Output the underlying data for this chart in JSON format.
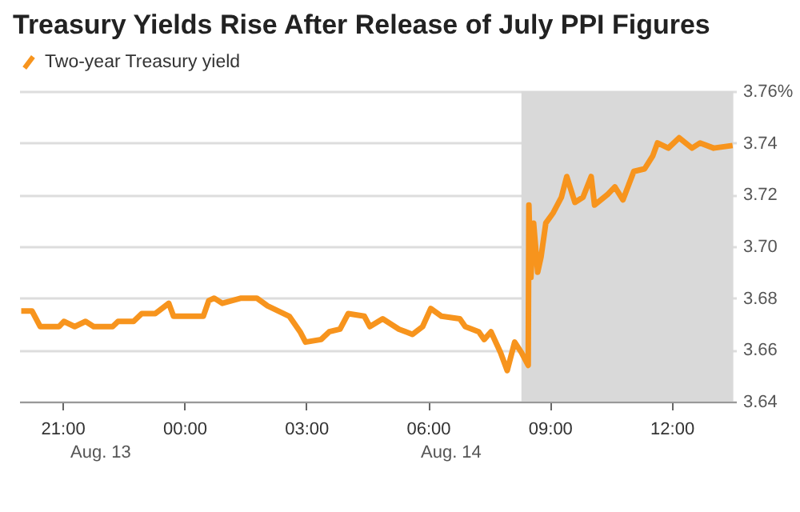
{
  "chart_data": {
    "type": "line",
    "title": "Treasury Yields Rise After Release of July PPI Figures",
    "x": [
      "--08-13T19:59",
      "--08-13T20:15",
      "--08-13T20:27",
      "--08-13T20:55",
      "--08-13T21:02",
      "--08-13T21:18",
      "--08-13T21:34",
      "--08-13T21:46",
      "--08-13T22:14",
      "--08-13T22:22",
      "--08-13T22:45",
      "--08-13T22:57",
      "--08-13T23:17",
      "--08-13T23:37",
      "--08-13T23:44",
      "--08-14T00:28",
      "--08-14T00:36",
      "--08-14T00:44",
      "--08-14T00:56",
      "--08-14T01:24",
      "--08-14T01:47",
      "--08-14T02:03",
      "--08-14T02:19",
      "--08-14T02:35",
      "--08-14T02:51",
      "--08-14T02:59",
      "--08-14T03:22",
      "--08-14T03:34",
      "--08-14T03:50",
      "--08-14T04:02",
      "--08-14T04:26",
      "--08-14T04:34",
      "--08-14T04:53",
      "--08-14T05:17",
      "--08-14T05:37",
      "--08-14T05:52",
      "--08-14T06:04",
      "--08-14T06:20",
      "--08-14T06:47",
      "--08-14T06:55",
      "--08-14T07:15",
      "--08-14T07:23",
      "--08-14T07:33",
      "--08-14T07:47",
      "--08-14T07:57",
      "--08-14T08:08",
      "--08-14T08:18",
      "--08-14T08:28",
      "--08-14T08:29",
      "--08-14T08:32",
      "--08-14T08:36",
      "--08-14T08:42",
      "--08-14T08:47",
      "--08-14T08:54",
      "--08-14T09:05",
      "--08-14T09:17",
      "--08-14T09:25",
      "--08-14T09:37",
      "--08-14T09:49",
      "--08-14T10:01",
      "--08-14T10:06",
      "--08-14T10:25",
      "--08-14T10:36",
      "--08-14T10:48",
      "--08-14T11:04",
      "--08-14T11:20",
      "--08-14T11:32",
      "--08-14T11:39",
      "--08-14T11:55",
      "--08-14T12:11",
      "--08-14T12:30",
      "--08-14T12:42",
      "--08-14T13:02",
      "--08-14T13:30"
    ],
    "series": [
      {
        "name": "Two-year Treasury yield",
        "color": "#f7941d",
        "values": [
          3.675,
          3.675,
          3.669,
          3.669,
          3.671,
          3.669,
          3.671,
          3.669,
          3.669,
          3.671,
          3.671,
          3.674,
          3.674,
          3.678,
          3.673,
          3.673,
          3.679,
          3.68,
          3.678,
          3.68,
          3.68,
          3.677,
          3.675,
          3.673,
          3.667,
          3.663,
          3.664,
          3.667,
          3.668,
          3.674,
          3.673,
          3.669,
          3.672,
          3.668,
          3.666,
          3.669,
          3.676,
          3.673,
          3.672,
          3.669,
          3.667,
          3.664,
          3.667,
          3.659,
          3.652,
          3.663,
          3.659,
          3.654,
          3.716,
          3.688,
          3.709,
          3.69,
          3.696,
          3.709,
          3.713,
          3.719,
          3.727,
          3.717,
          3.719,
          3.727,
          3.716,
          3.72,
          3.723,
          3.718,
          3.729,
          3.73,
          3.735,
          3.74,
          3.738,
          3.742,
          3.738,
          3.74,
          3.738,
          3.739
        ]
      }
    ],
    "xlim": [
      "--08-13T19:56",
      "--08-14T13:35"
    ],
    "xticks": [
      {
        "value": "--08-13T21:00",
        "label": "21:00"
      },
      {
        "value": "--08-14T00:00",
        "label": "00:00"
      },
      {
        "value": "--08-14T03:00",
        "label": "03:00"
      },
      {
        "value": "--08-14T06:00",
        "label": "06:00"
      },
      {
        "value": "--08-14T09:00",
        "label": "09:00"
      },
      {
        "value": "--08-14T12:00",
        "label": "12:00"
      }
    ],
    "ylim": [
      3.64,
      3.76
    ],
    "yticks": [
      {
        "value": 3.64,
        "label": "3.64"
      },
      {
        "value": 3.66,
        "label": "3.66"
      },
      {
        "value": 3.68,
        "label": "3.68"
      },
      {
        "value": 3.7,
        "label": "3.70"
      },
      {
        "value": 3.72,
        "label": "3.72"
      },
      {
        "value": 3.74,
        "label": "3.74"
      },
      {
        "value": 3.76,
        "label": "3.76%"
      }
    ],
    "bands": [
      {
        "axis": "x",
        "from": "--08-14T08:18",
        "to": "--08-14T13:31",
        "color": "#d9d9d9"
      }
    ],
    "annotations": [
      "Aug. 13",
      "Aug. 14"
    ],
    "grid": "y",
    "legend": "top left",
    "line_style": "solid",
    "marker": "none"
  }
}
